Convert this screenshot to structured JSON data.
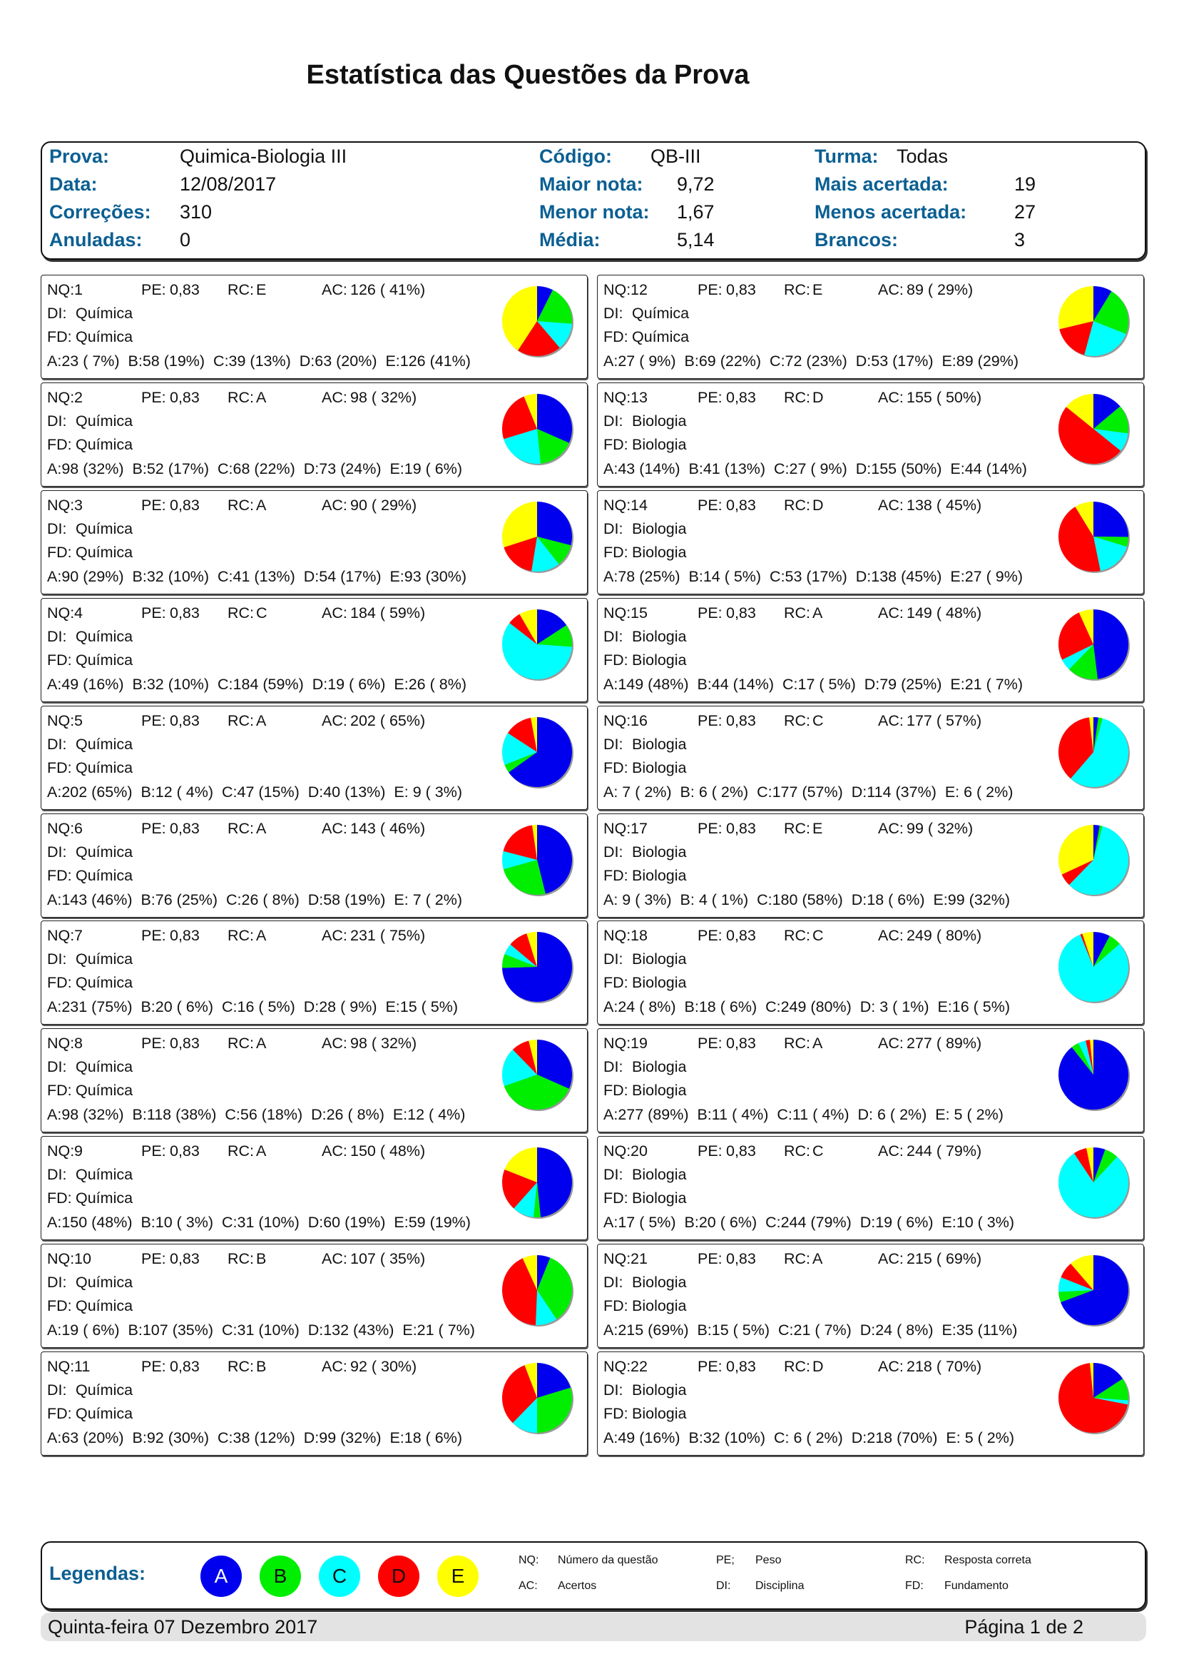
{
  "title": "Estatística das Questões da Prova",
  "header": {
    "prova_label": "Prova:",
    "prova": "Quimica-Biologia III",
    "data_label": "Data:",
    "data": "12/08/2017",
    "correcoes_label": "Correções:",
    "correcoes": "310",
    "anuladas_label": "Anuladas:",
    "anuladas": "0",
    "codigo_label": "Código:",
    "codigo": "QB-III",
    "maior_label": "Maior nota:",
    "maior": "9,72",
    "menor_label": "Menor nota:",
    "menor": "1,67",
    "media_label": "Média:",
    "media": "5,14",
    "turma_label": "Turma:",
    "turma": "Todas",
    "mais_label": "Mais acertada:",
    "mais": "19",
    "menos_label": "Menos acertada:",
    "menos": "27",
    "brancos_label": "Brancos:",
    "brancos": "3"
  },
  "labels": {
    "nq": "NQ:",
    "pe": "PE:",
    "rc": "RC:",
    "ac": "AC:",
    "di": "DI:",
    "fd": "FD:"
  },
  "colors": {
    "A": "#0000ee",
    "B": "#00ee00",
    "C": "#00ffff",
    "D": "#ff0000",
    "E": "#ffff00"
  },
  "questions": [
    {
      "nq": "1",
      "pe": "0,83",
      "rc": "E",
      "ac": "126 ( 41%)",
      "di": "Química",
      "fd": "Química",
      "items": [
        "A:23 ( 7%)",
        "B:58 (19%)",
        "C:39 (13%)",
        "D:63 (20%)",
        "E:126 (41%)"
      ],
      "counts": [
        23,
        58,
        39,
        63,
        126
      ]
    },
    {
      "nq": "2",
      "pe": "0,83",
      "rc": "A",
      "ac": "98 ( 32%)",
      "di": "Química",
      "fd": "Química",
      "items": [
        "A:98 (32%)",
        "B:52 (17%)",
        "C:68 (22%)",
        "D:73 (24%)",
        "E:19 ( 6%)"
      ],
      "counts": [
        98,
        52,
        68,
        73,
        19
      ]
    },
    {
      "nq": "3",
      "pe": "0,83",
      "rc": "A",
      "ac": "90 ( 29%)",
      "di": "Química",
      "fd": "Química",
      "items": [
        "A:90 (29%)",
        "B:32 (10%)",
        "C:41 (13%)",
        "D:54 (17%)",
        "E:93 (30%)"
      ],
      "counts": [
        90,
        32,
        41,
        54,
        93
      ]
    },
    {
      "nq": "4",
      "pe": "0,83",
      "rc": "C",
      "ac": "184 ( 59%)",
      "di": "Química",
      "fd": "Química",
      "items": [
        "A:49 (16%)",
        "B:32 (10%)",
        "C:184 (59%)",
        "D:19 ( 6%)",
        "E:26 ( 8%)"
      ],
      "counts": [
        49,
        32,
        184,
        19,
        26
      ]
    },
    {
      "nq": "5",
      "pe": "0,83",
      "rc": "A",
      "ac": "202 ( 65%)",
      "di": "Química",
      "fd": "Química",
      "items": [
        "A:202 (65%)",
        "B:12 ( 4%)",
        "C:47 (15%)",
        "D:40 (13%)",
        "E: 9 ( 3%)"
      ],
      "counts": [
        202,
        12,
        47,
        40,
        9
      ]
    },
    {
      "nq": "6",
      "pe": "0,83",
      "rc": "A",
      "ac": "143 ( 46%)",
      "di": "Química",
      "fd": "Química",
      "items": [
        "A:143 (46%)",
        "B:76 (25%)",
        "C:26 ( 8%)",
        "D:58 (19%)",
        "E: 7 ( 2%)"
      ],
      "counts": [
        143,
        76,
        26,
        58,
        7
      ]
    },
    {
      "nq": "7",
      "pe": "0,83",
      "rc": "A",
      "ac": "231 ( 75%)",
      "di": "Química",
      "fd": "Química",
      "items": [
        "A:231 (75%)",
        "B:20 ( 6%)",
        "C:16 ( 5%)",
        "D:28 ( 9%)",
        "E:15 ( 5%)"
      ],
      "counts": [
        231,
        20,
        16,
        28,
        15
      ]
    },
    {
      "nq": "8",
      "pe": "0,83",
      "rc": "A",
      "ac": "98 ( 32%)",
      "di": "Química",
      "fd": "Química",
      "items": [
        "A:98 (32%)",
        "B:118 (38%)",
        "C:56 (18%)",
        "D:26 ( 8%)",
        "E:12 ( 4%)"
      ],
      "counts": [
        98,
        118,
        56,
        26,
        12
      ]
    },
    {
      "nq": "9",
      "pe": "0,83",
      "rc": "A",
      "ac": "150 ( 48%)",
      "di": "Química",
      "fd": "Química",
      "items": [
        "A:150 (48%)",
        "B:10 ( 3%)",
        "C:31 (10%)",
        "D:60 (19%)",
        "E:59 (19%)"
      ],
      "counts": [
        150,
        10,
        31,
        60,
        59
      ]
    },
    {
      "nq": "10",
      "pe": "0,83",
      "rc": "B",
      "ac": "107 ( 35%)",
      "di": "Química",
      "fd": "Química",
      "items": [
        "A:19 ( 6%)",
        "B:107 (35%)",
        "C:31 (10%)",
        "D:132 (43%)",
        "E:21 ( 7%)"
      ],
      "counts": [
        19,
        107,
        31,
        132,
        21
      ]
    },
    {
      "nq": "11",
      "pe": "0,83",
      "rc": "B",
      "ac": "92 ( 30%)",
      "di": "Química",
      "fd": "Química",
      "items": [
        "A:63 (20%)",
        "B:92 (30%)",
        "C:38 (12%)",
        "D:99 (32%)",
        "E:18 ( 6%)"
      ],
      "counts": [
        63,
        92,
        38,
        99,
        18
      ]
    },
    {
      "nq": "12",
      "pe": "0,83",
      "rc": "E",
      "ac": "89 ( 29%)",
      "di": "Química",
      "fd": "Química",
      "items": [
        "A:27 ( 9%)",
        "B:69 (22%)",
        "C:72 (23%)",
        "D:53 (17%)",
        "E:89 (29%)"
      ],
      "counts": [
        27,
        69,
        72,
        53,
        89
      ]
    },
    {
      "nq": "13",
      "pe": "0,83",
      "rc": "D",
      "ac": "155 ( 50%)",
      "di": "Biologia",
      "fd": "Biologia",
      "items": [
        "A:43 (14%)",
        "B:41 (13%)",
        "C:27 ( 9%)",
        "D:155 (50%)",
        "E:44 (14%)"
      ],
      "counts": [
        43,
        41,
        27,
        155,
        44
      ]
    },
    {
      "nq": "14",
      "pe": "0,83",
      "rc": "D",
      "ac": "138 ( 45%)",
      "di": "Biologia",
      "fd": "Biologia",
      "items": [
        "A:78 (25%)",
        "B:14 ( 5%)",
        "C:53 (17%)",
        "D:138 (45%)",
        "E:27 ( 9%)"
      ],
      "counts": [
        78,
        14,
        53,
        138,
        27
      ]
    },
    {
      "nq": "15",
      "pe": "0,83",
      "rc": "A",
      "ac": "149 ( 48%)",
      "di": "Biologia",
      "fd": "Biologia",
      "items": [
        "A:149 (48%)",
        "B:44 (14%)",
        "C:17 ( 5%)",
        "D:79 (25%)",
        "E:21 ( 7%)"
      ],
      "counts": [
        149,
        44,
        17,
        79,
        21
      ]
    },
    {
      "nq": "16",
      "pe": "0,83",
      "rc": "C",
      "ac": "177 ( 57%)",
      "di": "Biologia",
      "fd": "Biologia",
      "items": [
        "A: 7 ( 2%)",
        "B: 6 ( 2%)",
        "C:177 (57%)",
        "D:114 (37%)",
        "E: 6 ( 2%)"
      ],
      "counts": [
        7,
        6,
        177,
        114,
        6
      ]
    },
    {
      "nq": "17",
      "pe": "0,83",
      "rc": "E",
      "ac": "99 ( 32%)",
      "di": "Biologia",
      "fd": "Biologia",
      "items": [
        "A: 9 ( 3%)",
        "B: 4 ( 1%)",
        "C:180 (58%)",
        "D:18 ( 6%)",
        "E:99 (32%)"
      ],
      "counts": [
        9,
        4,
        180,
        18,
        99
      ]
    },
    {
      "nq": "18",
      "pe": "0,83",
      "rc": "C",
      "ac": "249 ( 80%)",
      "di": "Biologia",
      "fd": "Biologia",
      "items": [
        "A:24 ( 8%)",
        "B:18 ( 6%)",
        "C:249 (80%)",
        "D: 3 ( 1%)",
        "E:16 ( 5%)"
      ],
      "counts": [
        24,
        18,
        249,
        3,
        16
      ]
    },
    {
      "nq": "19",
      "pe": "0,83",
      "rc": "A",
      "ac": "277 ( 89%)",
      "di": "Biologia",
      "fd": "Biologia",
      "items": [
        "A:277 (89%)",
        "B:11 ( 4%)",
        "C:11 ( 4%)",
        "D: 6 ( 2%)",
        "E: 5 ( 2%)"
      ],
      "counts": [
        277,
        11,
        11,
        6,
        5
      ]
    },
    {
      "nq": "20",
      "pe": "0,83",
      "rc": "C",
      "ac": "244 ( 79%)",
      "di": "Biologia",
      "fd": "Biologia",
      "items": [
        "A:17 ( 5%)",
        "B:20 ( 6%)",
        "C:244 (79%)",
        "D:19 ( 6%)",
        "E:10 ( 3%)"
      ],
      "counts": [
        17,
        20,
        244,
        19,
        10
      ]
    },
    {
      "nq": "21",
      "pe": "0,83",
      "rc": "A",
      "ac": "215 ( 69%)",
      "di": "Biologia",
      "fd": "Biologia",
      "items": [
        "A:215 (69%)",
        "B:15 ( 5%)",
        "C:21 ( 7%)",
        "D:24 ( 8%)",
        "E:35 (11%)"
      ],
      "counts": [
        215,
        15,
        21,
        24,
        35
      ]
    },
    {
      "nq": "22",
      "pe": "0,83",
      "rc": "D",
      "ac": "218 ( 70%)",
      "di": "Biologia",
      "fd": "Biologia",
      "items": [
        "A:49 (16%)",
        "B:32 (10%)",
        "C: 6 ( 2%)",
        "D:218 (70%)",
        "E: 5 ( 2%)"
      ],
      "counts": [
        49,
        32,
        6,
        218,
        5
      ]
    }
  ],
  "legend": {
    "title": "Legendas:",
    "letters": [
      "A",
      "B",
      "C",
      "D",
      "E"
    ],
    "keys": [
      {
        "k": "NQ:",
        "v": "Número da questão"
      },
      {
        "k": "PE;",
        "v": "Peso"
      },
      {
        "k": "RC:",
        "v": "Resposta correta"
      },
      {
        "k": "AC:",
        "v": "Acertos"
      },
      {
        "k": "DI:",
        "v": "Disciplina"
      },
      {
        "k": "FD:",
        "v": "Fundamento"
      }
    ]
  },
  "footer": {
    "date": "Quinta-feira 07 Dezembro 2017",
    "page": "Página 1 de 2"
  }
}
